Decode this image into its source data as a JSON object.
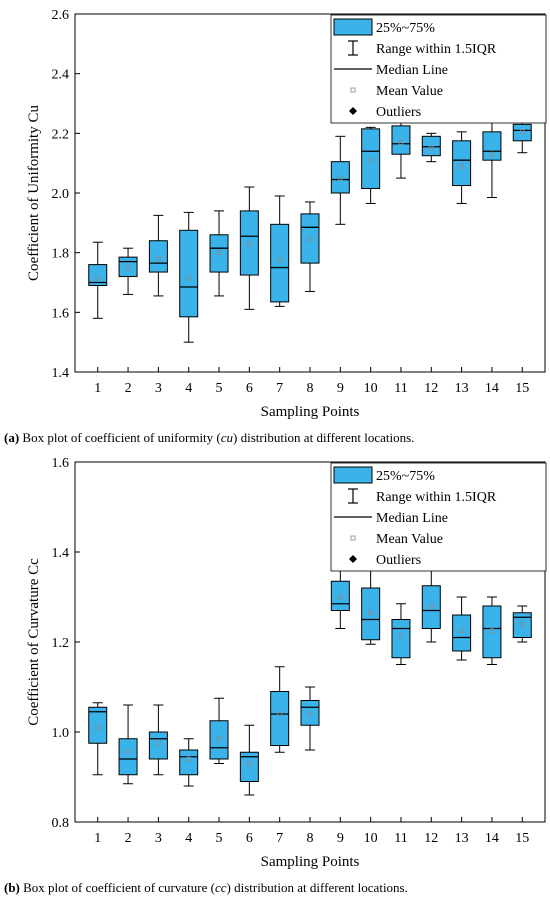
{
  "chart_data": [
    {
      "type": "box",
      "xlabel": "Sampling Points",
      "ylabel": "Coefficient of Uniformity Cu",
      "categories": [
        "1",
        "2",
        "3",
        "4",
        "5",
        "6",
        "7",
        "8",
        "9",
        "10",
        "11",
        "12",
        "13",
        "14",
        "15"
      ],
      "ylim": [
        1.4,
        2.6
      ],
      "yticks": [
        "1.4",
        "1.6",
        "1.8",
        "2.0",
        "2.2",
        "2.4",
        "2.6"
      ],
      "legend_placement": "top-right",
      "legend": [
        "25%~75%",
        "Range within 1.5IQR",
        "Median Line",
        "Mean Value",
        "Outliers"
      ],
      "boxes": [
        {
          "min": 1.58,
          "q1": 1.69,
          "median": 1.7,
          "q3": 1.76,
          "max": 1.835,
          "mean": 1.715
        },
        {
          "min": 1.66,
          "q1": 1.72,
          "median": 1.77,
          "q3": 1.785,
          "max": 1.815,
          "mean": 1.75
        },
        {
          "min": 1.655,
          "q1": 1.735,
          "median": 1.765,
          "q3": 1.84,
          "max": 1.925,
          "mean": 1.78
        },
        {
          "min": 1.5,
          "q1": 1.585,
          "median": 1.685,
          "q3": 1.875,
          "max": 1.935,
          "mean": 1.715
        },
        {
          "min": 1.655,
          "q1": 1.735,
          "median": 1.815,
          "q3": 1.86,
          "max": 1.94,
          "mean": 1.8
        },
        {
          "min": 1.61,
          "q1": 1.725,
          "median": 1.855,
          "q3": 1.94,
          "max": 2.02,
          "mean": 1.83
        },
        {
          "min": 1.62,
          "q1": 1.635,
          "median": 1.75,
          "q3": 1.895,
          "max": 1.99,
          "mean": 1.775
        },
        {
          "min": 1.67,
          "q1": 1.765,
          "median": 1.885,
          "q3": 1.93,
          "max": 1.97,
          "mean": 1.845
        },
        {
          "min": 1.895,
          "q1": 2.0,
          "median": 2.045,
          "q3": 2.105,
          "max": 2.19,
          "mean": 2.05
        },
        {
          "min": 1.965,
          "q1": 2.015,
          "median": 2.14,
          "q3": 2.215,
          "max": 2.22,
          "mean": 2.11
        },
        {
          "min": 2.05,
          "q1": 2.13,
          "median": 2.165,
          "q3": 2.225,
          "max": 2.255,
          "mean": 2.17
        },
        {
          "min": 2.105,
          "q1": 2.125,
          "median": 2.155,
          "q3": 2.19,
          "max": 2.2,
          "mean": 2.15
        },
        {
          "min": 1.965,
          "q1": 2.025,
          "median": 2.11,
          "q3": 2.175,
          "max": 2.205,
          "mean": 2.09
        },
        {
          "min": 1.985,
          "q1": 2.11,
          "median": 2.14,
          "q3": 2.205,
          "max": 2.25,
          "mean": 2.13
        },
        {
          "min": 2.135,
          "q1": 2.175,
          "median": 2.21,
          "q3": 2.23,
          "max": 2.27,
          "mean": 2.205
        }
      ],
      "caption_label": "(a)",
      "caption_pre": " Box plot of coefficient of uniformity (",
      "caption_symbol": "cu",
      "caption_post": ") distribution at different locations."
    },
    {
      "type": "box",
      "xlabel": "Sampling Points",
      "ylabel": "Coefficient of Curvature Cc",
      "categories": [
        "1",
        "2",
        "3",
        "4",
        "5",
        "6",
        "7",
        "8",
        "9",
        "10",
        "11",
        "12",
        "13",
        "14",
        "15"
      ],
      "ylim": [
        0.8,
        1.6
      ],
      "yticks": [
        "0.8",
        "1.0",
        "1.2",
        "1.4",
        "1.6"
      ],
      "legend_placement": "top-right",
      "legend": [
        "25%~75%",
        "Range within 1.5IQR",
        "Median Line",
        "Mean Value",
        "Outliers"
      ],
      "boxes": [
        {
          "min": 0.905,
          "q1": 0.975,
          "median": 1.045,
          "q3": 1.055,
          "max": 1.065,
          "mean": 1.01
        },
        {
          "min": 0.885,
          "q1": 0.905,
          "median": 0.94,
          "q3": 0.985,
          "max": 1.06,
          "mean": 0.955
        },
        {
          "min": 0.905,
          "q1": 0.94,
          "median": 0.985,
          "q3": 1.0,
          "max": 1.06,
          "mean": 0.975
        },
        {
          "min": 0.88,
          "q1": 0.905,
          "median": 0.945,
          "q3": 0.96,
          "max": 0.985,
          "mean": 0.94
        },
        {
          "min": 0.93,
          "q1": 0.94,
          "median": 0.965,
          "q3": 1.025,
          "max": 1.075,
          "mean": 0.985
        },
        {
          "min": 0.86,
          "q1": 0.89,
          "median": 0.945,
          "q3": 0.955,
          "max": 1.015,
          "mean": 0.93
        },
        {
          "min": 0.955,
          "q1": 0.97,
          "median": 1.04,
          "q3": 1.09,
          "max": 1.145,
          "mean": 1.04
        },
        {
          "min": 0.96,
          "q1": 1.015,
          "median": 1.055,
          "q3": 1.07,
          "max": 1.1,
          "mean": 1.04
        },
        {
          "min": 1.23,
          "q1": 1.27,
          "median": 1.285,
          "q3": 1.335,
          "max": 1.375,
          "mean": 1.3
        },
        {
          "min": 1.195,
          "q1": 1.205,
          "median": 1.25,
          "q3": 1.32,
          "max": 1.36,
          "mean": 1.265
        },
        {
          "min": 1.15,
          "q1": 1.165,
          "median": 1.23,
          "q3": 1.25,
          "max": 1.285,
          "mean": 1.215
        },
        {
          "min": 1.2,
          "q1": 1.23,
          "median": 1.27,
          "q3": 1.325,
          "max": 1.36,
          "mean": 1.28
        },
        {
          "min": 1.16,
          "q1": 1.18,
          "median": 1.21,
          "q3": 1.26,
          "max": 1.3,
          "mean": 1.225
        },
        {
          "min": 1.15,
          "q1": 1.165,
          "median": 1.23,
          "q3": 1.28,
          "max": 1.3,
          "mean": 1.225
        },
        {
          "min": 1.2,
          "q1": 1.21,
          "median": 1.255,
          "q3": 1.265,
          "max": 1.28,
          "mean": 1.24
        }
      ],
      "caption_label": "(b)",
      "caption_pre": " Box plot of coefficient of curvature (",
      "caption_symbol": "cc",
      "caption_post": ") distribution at different locations."
    }
  ],
  "colors": {
    "box_fill": "#3ab3ea",
    "stroke": "#000000",
    "mean_marker": "#8a8a8a"
  }
}
